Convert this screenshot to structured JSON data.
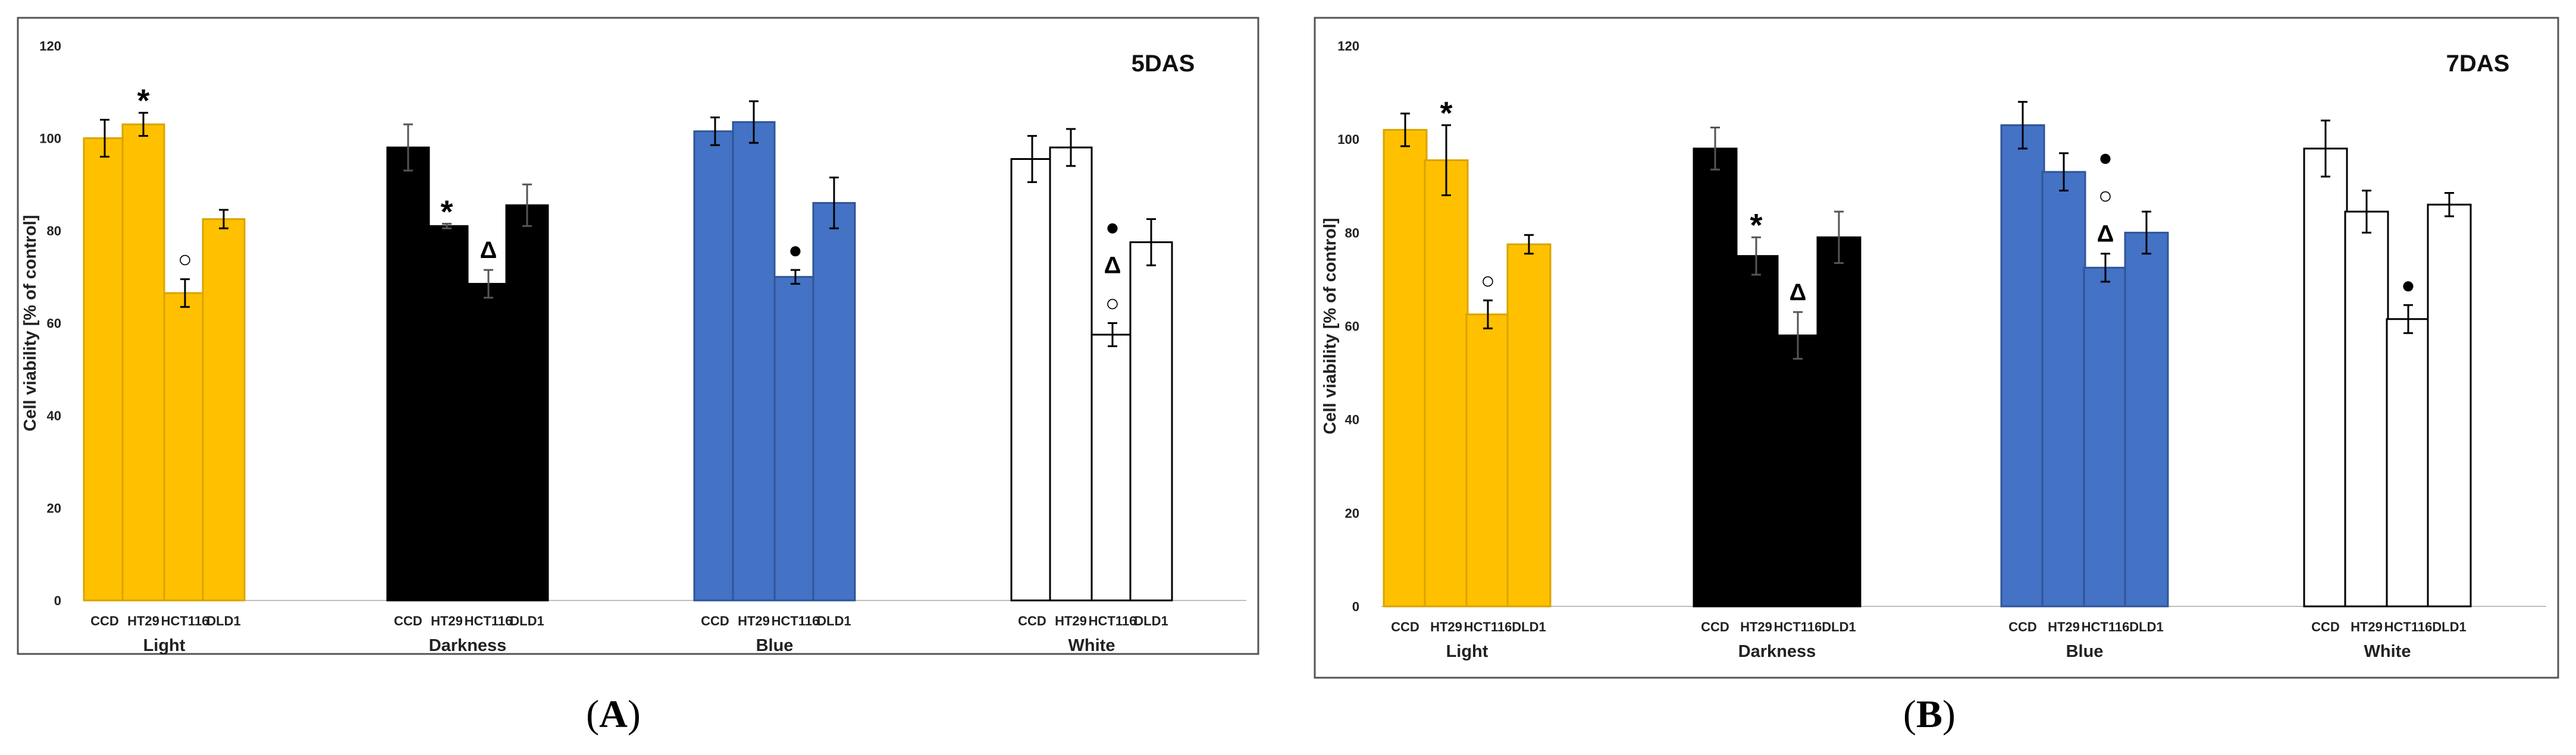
{
  "colors": {
    "yellow": "#FFC000",
    "yellow_edge": "#D9A400",
    "black": "#000000",
    "blue": "#4472C4",
    "blue_edge": "#2F5597",
    "white": "#FFFFFF"
  },
  "chart_data": [
    {
      "type": "bar",
      "panel": "A",
      "title": "5DAS",
      "ylabel": "Cell viability [% of control]",
      "ylim": [
        0,
        120
      ],
      "yticks": [
        0,
        20,
        40,
        60,
        80,
        100,
        120
      ],
      "categories": [
        "CCD",
        "HT29",
        "HCT116",
        "DLD1"
      ],
      "groups": [
        {
          "name": "Light",
          "color": "yellow",
          "values": [
            100,
            103,
            66.5,
            82.5
          ],
          "errors": [
            4,
            2.5,
            3,
            2
          ],
          "marks": [
            "",
            "*",
            "○",
            ""
          ]
        },
        {
          "name": "Darkness",
          "color": "black",
          "values": [
            98,
            81,
            68.5,
            85.5
          ],
          "errors": [
            5,
            0.5,
            3,
            4.5
          ],
          "marks": [
            "",
            "*",
            "Δ",
            ""
          ]
        },
        {
          "name": "Blue",
          "color": "blue",
          "values": [
            101.5,
            103.5,
            70,
            86
          ],
          "errors": [
            3,
            4.5,
            1.5,
            5.5
          ],
          "marks": [
            "",
            "",
            "●",
            ""
          ]
        },
        {
          "name": "White",
          "color": "white",
          "values": [
            95.5,
            98,
            57.5,
            77.5
          ],
          "errors": [
            5,
            4,
            2.5,
            5
          ],
          "marks": [
            "",
            "",
            "●\nΔ\n○",
            ""
          ]
        }
      ]
    },
    {
      "type": "bar",
      "panel": "B",
      "title": "7DAS",
      "ylabel": "Cell viability [% of control]",
      "ylim": [
        0,
        120
      ],
      "yticks": [
        0,
        20,
        40,
        60,
        80,
        100,
        120
      ],
      "categories": [
        "CCD",
        "HT29",
        "HCT116",
        "DLD1"
      ],
      "groups": [
        {
          "name": "Light",
          "color": "yellow",
          "values": [
            102,
            95.5,
            62.5,
            77.5
          ],
          "errors": [
            3.5,
            7.5,
            3,
            2
          ],
          "marks": [
            "",
            "*",
            "○",
            ""
          ]
        },
        {
          "name": "Darkness",
          "color": "black",
          "values": [
            98,
            75,
            58,
            79
          ],
          "errors": [
            4.5,
            4,
            5,
            5.5
          ],
          "marks": [
            "",
            "*",
            "Δ",
            ""
          ]
        },
        {
          "name": "Blue",
          "color": "blue",
          "values": [
            103,
            93,
            72.5,
            80
          ],
          "errors": [
            5,
            4,
            3,
            4.5
          ],
          "marks": [
            "",
            "",
            "●\n○\nΔ",
            ""
          ]
        },
        {
          "name": "White",
          "color": "white",
          "values": [
            98,
            84.5,
            61.5,
            86
          ],
          "errors": [
            6,
            4.5,
            3,
            2.5
          ],
          "marks": [
            "",
            "",
            "●",
            ""
          ]
        }
      ]
    }
  ],
  "captions": {
    "a": "A",
    "b": "B"
  }
}
